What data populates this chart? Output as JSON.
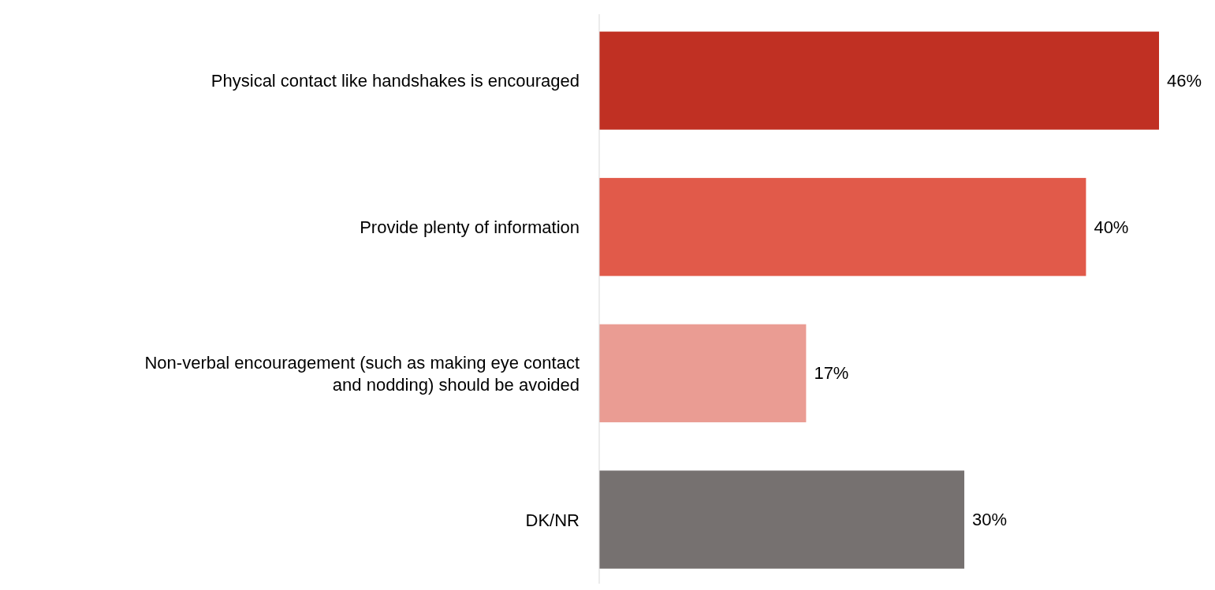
{
  "chart_data": {
    "type": "bar",
    "orientation": "horizontal",
    "categories": [
      "Physical contact like handshakes is encouraged",
      "Provide plenty of information",
      "Non-verbal encouragement (such as making eye contact and nodding) should be avoided",
      "DK/NR"
    ],
    "values": [
      46,
      40,
      17,
      30
    ],
    "colors": [
      "#c03023",
      "#e15a4a",
      "#ea9c93",
      "#767170"
    ],
    "value_labels": [
      "46%",
      "40%",
      "17%",
      "30%"
    ]
  }
}
